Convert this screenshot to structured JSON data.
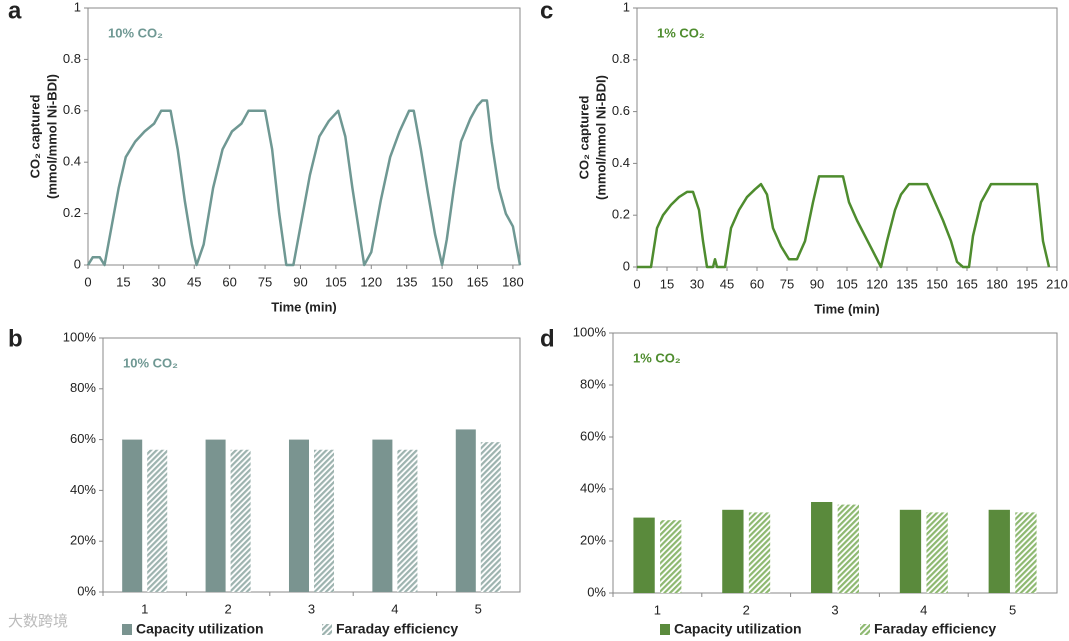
{
  "chart_data": [
    {
      "panel": "a",
      "type": "line",
      "title": "10% CO₂",
      "color": "#6f9893",
      "ylabel": [
        "CO₂ captured",
        "(mmol/mmol Ni-BDI)"
      ],
      "xlabel": "Time (min)",
      "xlim": [
        0,
        183
      ],
      "xticks": [
        0,
        15,
        30,
        45,
        60,
        75,
        90,
        105,
        120,
        135,
        150,
        165,
        180
      ],
      "ylim": [
        0,
        1
      ],
      "yticks": [
        0,
        0.2,
        0.4,
        0.6,
        0.8,
        1
      ],
      "x": [
        0,
        2,
        5,
        7,
        10,
        13,
        16,
        20,
        24,
        28,
        31,
        35,
        38,
        41,
        44,
        46,
        49,
        53,
        57,
        61,
        65,
        68,
        75,
        78,
        81,
        84,
        87,
        90,
        94,
        98,
        102,
        106,
        109,
        112,
        115,
        117,
        120,
        124,
        128,
        132,
        136,
        138,
        141,
        144,
        147,
        150,
        152,
        155,
        158,
        162,
        165,
        167,
        169,
        171,
        174,
        177,
        180,
        182,
        183
      ],
      "values": [
        0,
        0.03,
        0.03,
        0,
        0.15,
        0.3,
        0.42,
        0.48,
        0.52,
        0.55,
        0.6,
        0.6,
        0.45,
        0.25,
        0.08,
        0,
        0.08,
        0.3,
        0.45,
        0.52,
        0.55,
        0.6,
        0.6,
        0.45,
        0.2,
        0,
        0,
        0.15,
        0.35,
        0.5,
        0.56,
        0.6,
        0.5,
        0.3,
        0.12,
        0,
        0.05,
        0.25,
        0.42,
        0.52,
        0.6,
        0.6,
        0.45,
        0.28,
        0.12,
        0,
        0.1,
        0.3,
        0.48,
        0.57,
        0.62,
        0.64,
        0.64,
        0.48,
        0.3,
        0.2,
        0.15,
        0.05,
        0
      ]
    },
    {
      "panel": "b",
      "type": "bar",
      "title": "10% CO₂",
      "categories": [
        "1",
        "2",
        "3",
        "4",
        "5"
      ],
      "ylim": [
        0,
        100
      ],
      "yticks": [
        {
          "value": 0,
          "label": "0%"
        },
        {
          "value": 20,
          "label": "20%"
        },
        {
          "value": 40,
          "label": "40%"
        },
        {
          "value": 60,
          "label": "60%"
        },
        {
          "value": 80,
          "label": "80%"
        },
        {
          "value": 100,
          "label": "100%"
        }
      ],
      "title_color": "#6f9893",
      "series": [
        {
          "name": "Capacity utilization",
          "color": "#7a9490",
          "hatch": false,
          "values": [
            60,
            60,
            60,
            60,
            64
          ]
        },
        {
          "name": "Faraday efficiency",
          "color": "#9db3af",
          "hatch": true,
          "values": [
            56,
            56,
            56,
            56,
            59
          ]
        }
      ]
    },
    {
      "panel": "c",
      "type": "line",
      "title": "1% CO₂",
      "color": "#4e8c2e",
      "ylabel": [
        "CO₂ captured",
        "(mmol/mmol Ni-BDI)"
      ],
      "xlabel": "Time (min)",
      "xlim": [
        0,
        210
      ],
      "xticks": [
        0,
        15,
        30,
        45,
        60,
        75,
        90,
        105,
        120,
        135,
        150,
        165,
        180,
        195,
        210
      ],
      "ylim": [
        0,
        1
      ],
      "yticks": [
        0,
        0.2,
        0.4,
        0.6,
        0.8,
        1
      ],
      "x": [
        0,
        7,
        10,
        13,
        17,
        21,
        25,
        28,
        31,
        33,
        35,
        38,
        39,
        40,
        44,
        47,
        51,
        55,
        59,
        62,
        65,
        68,
        72,
        76,
        80,
        84,
        88,
        91,
        103,
        106,
        110,
        114,
        118,
        122,
        125,
        129,
        132,
        136,
        145,
        149,
        153,
        157,
        160,
        163,
        166,
        168,
        172,
        177,
        200,
        203,
        206
      ],
      "values": [
        0,
        0,
        0.15,
        0.2,
        0.24,
        0.27,
        0.29,
        0.29,
        0.22,
        0.1,
        0,
        0,
        0.03,
        0,
        0,
        0.15,
        0.22,
        0.27,
        0.3,
        0.32,
        0.28,
        0.15,
        0.08,
        0.03,
        0.03,
        0.1,
        0.25,
        0.35,
        0.35,
        0.25,
        0.18,
        0.12,
        0.06,
        0,
        0.1,
        0.22,
        0.28,
        0.32,
        0.32,
        0.25,
        0.18,
        0.1,
        0.02,
        0,
        0,
        0.12,
        0.25,
        0.32,
        0.32,
        0.1,
        0
      ]
    },
    {
      "panel": "d",
      "type": "bar",
      "title": "1% CO₂",
      "categories": [
        "1",
        "2",
        "3",
        "4",
        "5"
      ],
      "ylim": [
        0,
        100
      ],
      "yticks": [
        {
          "value": 0,
          "label": "0%"
        },
        {
          "value": 20,
          "label": "20%"
        },
        {
          "value": 40,
          "label": "40%"
        },
        {
          "value": 60,
          "label": "60%"
        },
        {
          "value": 80,
          "label": "80%"
        },
        {
          "value": 100,
          "label": "100%"
        }
      ],
      "title_color": "#4e8c2e",
      "series": [
        {
          "name": "Capacity utilization",
          "color": "#5a8a3c",
          "hatch": false,
          "values": [
            29,
            32,
            35,
            32,
            32
          ]
        },
        {
          "name": "Faraday efficiency",
          "color": "#8db870",
          "hatch": true,
          "values": [
            28,
            31,
            34,
            31,
            31
          ]
        }
      ]
    }
  ],
  "watermark": "大数跨境"
}
